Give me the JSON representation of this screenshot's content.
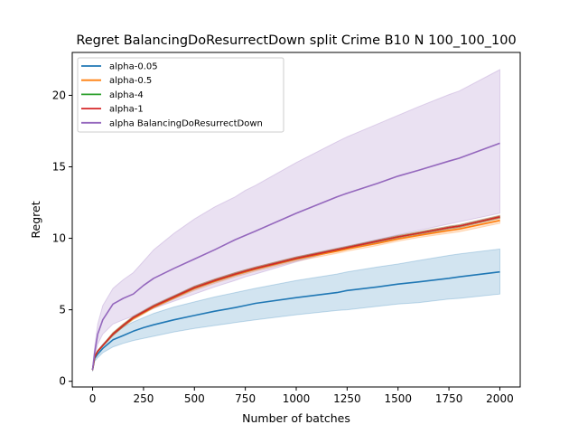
{
  "chart_data": {
    "type": "line",
    "title": "Regret BalancingDoResurrectDown split Crime B10 N 100_100_100",
    "xlabel": "Number of batches",
    "ylabel": "Regret",
    "xlim": [
      -100,
      2100
    ],
    "ylim": [
      -0.4,
      23.0
    ],
    "x_ticks": [
      0,
      250,
      500,
      750,
      1000,
      1250,
      1500,
      1750,
      2000
    ],
    "y_ticks": [
      0,
      5,
      10,
      15,
      20
    ],
    "x_tick_labels": [
      "0",
      "250",
      "500",
      "750",
      "1000",
      "1250",
      "1500",
      "1750",
      "2000"
    ],
    "y_tick_labels": [
      "0",
      "5",
      "10",
      "15",
      "20"
    ],
    "grid": false,
    "legend_position": "top-left",
    "x": [
      0,
      10,
      25,
      50,
      100,
      150,
      200,
      250,
      300,
      400,
      500,
      600,
      700,
      750,
      800,
      1000,
      1200,
      1250,
      1400,
      1500,
      1600,
      1750,
      1800,
      2000
    ],
    "series": [
      {
        "name": "alpha-0.05",
        "color": "#1f77b4",
        "values": [
          0.8,
          1.6,
          1.9,
          2.3,
          2.9,
          3.2,
          3.5,
          3.75,
          3.95,
          4.3,
          4.6,
          4.9,
          5.15,
          5.3,
          5.45,
          5.85,
          6.2,
          6.35,
          6.6,
          6.8,
          6.95,
          7.2,
          7.3,
          7.65
        ],
        "lower": [
          0.7,
          1.4,
          1.65,
          2.0,
          2.4,
          2.65,
          2.85,
          3.0,
          3.15,
          3.45,
          3.7,
          3.9,
          4.1,
          4.2,
          4.3,
          4.65,
          4.95,
          5.0,
          5.25,
          5.4,
          5.5,
          5.75,
          5.8,
          6.1
        ],
        "upper": [
          0.9,
          1.8,
          2.15,
          2.6,
          3.3,
          3.8,
          4.15,
          4.45,
          4.75,
          5.2,
          5.55,
          5.9,
          6.2,
          6.35,
          6.5,
          7.05,
          7.5,
          7.65,
          8.0,
          8.2,
          8.45,
          8.8,
          8.9,
          9.25
        ]
      },
      {
        "name": "alpha-0.5",
        "color": "#ff7f0e",
        "values": [
          0.8,
          1.7,
          2.1,
          2.5,
          3.3,
          3.9,
          4.4,
          4.8,
          5.2,
          5.85,
          6.5,
          7.0,
          7.45,
          7.65,
          7.85,
          8.55,
          9.1,
          9.25,
          9.65,
          9.95,
          10.2,
          10.55,
          10.65,
          11.25
        ],
        "lower": [
          0.75,
          1.65,
          2.05,
          2.45,
          3.2,
          3.8,
          4.3,
          4.7,
          5.1,
          5.75,
          6.35,
          6.85,
          7.3,
          7.5,
          7.7,
          8.4,
          8.95,
          9.1,
          9.5,
          9.8,
          10.05,
          10.35,
          10.45,
          11.05
        ],
        "upper": [
          0.85,
          1.75,
          2.15,
          2.55,
          3.4,
          4.0,
          4.5,
          4.9,
          5.3,
          5.95,
          6.65,
          7.15,
          7.6,
          7.8,
          8.0,
          8.7,
          9.25,
          9.4,
          9.85,
          10.15,
          10.4,
          10.75,
          10.85,
          11.45
        ]
      },
      {
        "name": "alpha-4",
        "color": "#2ca02c",
        "values": [
          0.8,
          1.7,
          2.1,
          2.5,
          3.3,
          3.9,
          4.45,
          4.85,
          5.25,
          5.9,
          6.55,
          7.05,
          7.5,
          7.7,
          7.9,
          8.6,
          9.2,
          9.35,
          9.8,
          10.1,
          10.35,
          10.75,
          10.85,
          11.5
        ],
        "lower": [
          0.75,
          1.65,
          2.05,
          2.45,
          3.2,
          3.8,
          4.35,
          4.75,
          5.15,
          5.8,
          6.45,
          6.95,
          7.4,
          7.6,
          7.8,
          8.5,
          9.1,
          9.25,
          9.7,
          10.0,
          10.25,
          10.65,
          10.75,
          11.4
        ],
        "upper": [
          0.85,
          1.75,
          2.15,
          2.55,
          3.4,
          4.0,
          4.55,
          4.95,
          5.35,
          6.0,
          6.65,
          7.15,
          7.6,
          7.8,
          8.0,
          8.7,
          9.3,
          9.45,
          9.9,
          10.2,
          10.45,
          10.85,
          10.95,
          11.6
        ]
      },
      {
        "name": "alpha-1",
        "color": "#d62728",
        "values": [
          0.8,
          1.7,
          2.1,
          2.5,
          3.3,
          3.9,
          4.45,
          4.85,
          5.25,
          5.9,
          6.55,
          7.05,
          7.5,
          7.7,
          7.9,
          8.6,
          9.2,
          9.35,
          9.8,
          10.1,
          10.35,
          10.75,
          10.85,
          11.5
        ],
        "lower": [
          0.75,
          1.65,
          2.05,
          2.45,
          3.2,
          3.8,
          4.35,
          4.75,
          5.15,
          5.8,
          6.45,
          6.95,
          7.4,
          7.6,
          7.8,
          8.5,
          9.1,
          9.25,
          9.7,
          10.0,
          10.25,
          10.65,
          10.75,
          11.4
        ],
        "upper": [
          0.85,
          1.75,
          2.15,
          2.55,
          3.4,
          4.0,
          4.55,
          4.95,
          5.35,
          6.0,
          6.65,
          7.15,
          7.6,
          7.8,
          8.0,
          8.7,
          9.3,
          9.45,
          9.9,
          10.2,
          10.45,
          10.85,
          10.95,
          11.6
        ]
      },
      {
        "name": "alpha BalancingDoResurrectDown",
        "color": "#9467bd",
        "values": [
          0.8,
          2.0,
          3.3,
          4.3,
          5.4,
          5.8,
          6.1,
          6.7,
          7.2,
          7.9,
          8.55,
          9.2,
          9.9,
          10.2,
          10.5,
          11.75,
          12.9,
          13.15,
          13.85,
          14.35,
          14.75,
          15.4,
          15.6,
          16.65
        ],
        "lower": [
          0.7,
          1.7,
          2.6,
          3.3,
          4.0,
          4.3,
          4.55,
          4.8,
          5.1,
          5.6,
          6.1,
          6.6,
          7.05,
          7.3,
          7.5,
          8.35,
          9.15,
          9.35,
          9.9,
          10.25,
          10.55,
          11.0,
          11.15,
          11.75
        ],
        "upper": [
          0.9,
          2.4,
          4.0,
          5.3,
          6.5,
          7.1,
          7.6,
          8.4,
          9.2,
          10.35,
          11.35,
          12.2,
          12.9,
          13.35,
          13.7,
          15.3,
          16.75,
          17.1,
          18.0,
          18.6,
          19.2,
          20.05,
          20.3,
          21.8
        ]
      }
    ]
  }
}
